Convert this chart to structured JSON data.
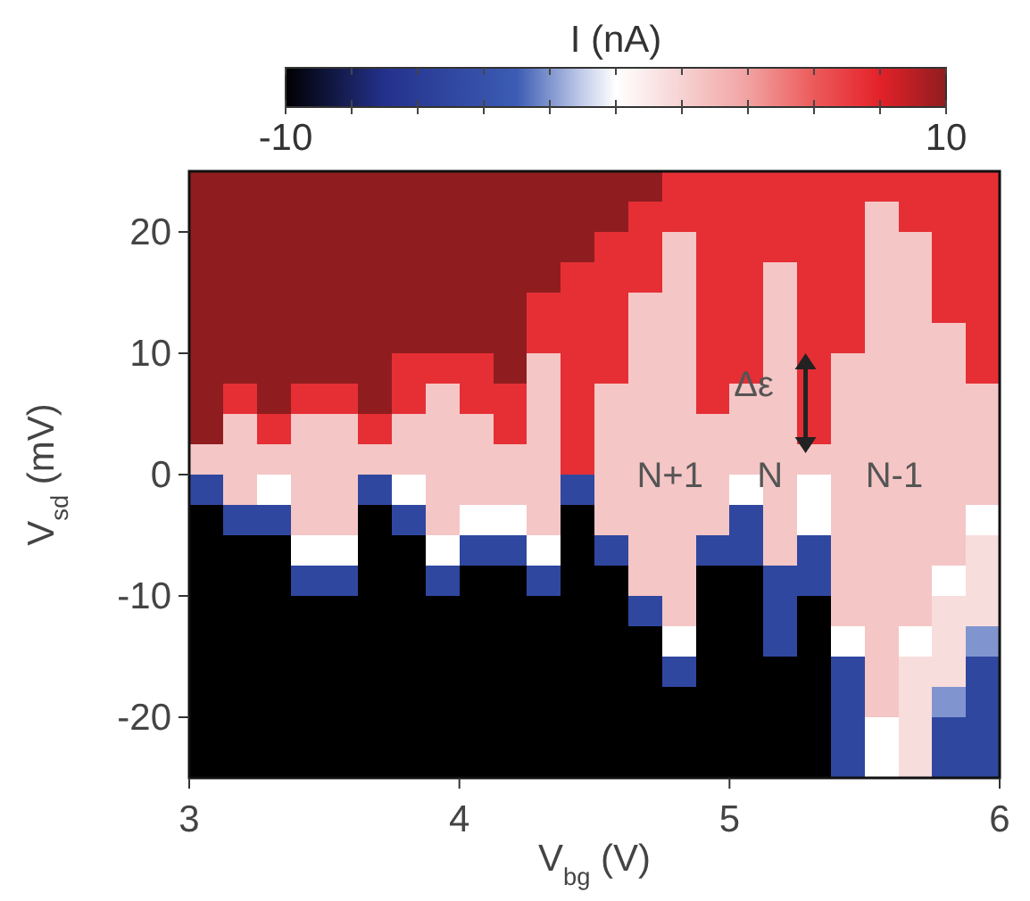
{
  "chart_data": {
    "type": "heatmap",
    "xlabel": "V$_{bg}$ (V)",
    "ylabel": "V$_{sd}$ (mV)",
    "clabel": "I (nA)",
    "xlim": [
      3,
      6
    ],
    "xticks": [
      3,
      4,
      5,
      6
    ],
    "ylim": [
      -25,
      25
    ],
    "yticks": [
      -20,
      -10,
      0,
      10,
      20
    ],
    "clim": [
      -10,
      10
    ],
    "cticks": [
      -10,
      {
        "value": -8,
        "label": null
      },
      {
        "value": -6,
        "label": null
      },
      {
        "value": -4,
        "label": null
      },
      {
        "value": -2,
        "label": null
      },
      {
        "value": 0,
        "label": null
      },
      {
        "value": 2,
        "label": null
      },
      {
        "value": 4,
        "label": null
      },
      {
        "value": 6,
        "label": null
      },
      {
        "value": 8,
        "label": null
      },
      10
    ],
    "cells": [
      [
        10,
        10,
        10,
        10,
        10,
        10,
        10,
        10,
        10,
        10,
        10,
        10,
        10,
        10,
        7.5,
        7.5,
        7.5,
        7.5,
        7.5,
        7.5,
        7.5,
        7.5,
        7.5,
        7.5
      ],
      [
        10,
        10,
        10,
        10,
        10,
        10,
        10,
        10,
        10,
        10,
        10,
        10,
        10,
        7.5,
        7.5,
        7.5,
        7.5,
        7.5,
        7.5,
        7.5,
        2.5,
        7.5,
        7.5,
        7.5
      ],
      [
        10,
        10,
        10,
        10,
        10,
        10,
        10,
        10,
        10,
        10,
        10,
        10,
        7.5,
        7.5,
        2.5,
        7.5,
        7.5,
        7.5,
        7.5,
        7.5,
        2.5,
        2.5,
        7.5,
        7.5
      ],
      [
        10,
        10,
        10,
        10,
        10,
        10,
        10,
        10,
        10,
        10,
        10,
        7.5,
        7.5,
        7.5,
        2.5,
        7.5,
        7.5,
        2.5,
        7.5,
        7.5,
        2.5,
        2.5,
        7.5,
        7.5
      ],
      [
        10,
        10,
        10,
        10,
        10,
        10,
        10,
        10,
        10,
        10,
        7.5,
        7.5,
        7.5,
        2.5,
        2.5,
        7.5,
        7.5,
        2.5,
        7.5,
        7.5,
        2.5,
        2.5,
        7.5,
        7.5
      ],
      [
        10,
        10,
        10,
        10,
        10,
        10,
        10,
        10,
        10,
        10,
        7.5,
        7.5,
        7.5,
        2.5,
        2.5,
        7.5,
        7.5,
        2.5,
        7.5,
        7.5,
        2.5,
        2.5,
        2.5,
        7.5
      ],
      [
        10,
        10,
        10,
        10,
        10,
        10,
        7.5,
        7.5,
        7.5,
        10,
        2.5,
        7.5,
        7.5,
        2.5,
        2.5,
        7.5,
        7.5,
        2.5,
        7.5,
        2.5,
        2.5,
        2.5,
        2.5,
        7.5
      ],
      [
        10,
        7.5,
        10,
        7.5,
        7.5,
        10,
        7.5,
        2.5,
        7.5,
        7.5,
        2.5,
        7.5,
        2.5,
        2.5,
        2.5,
        7.5,
        2.5,
        2.5,
        7.5,
        2.5,
        2.5,
        2.5,
        2.5,
        2.5
      ],
      [
        10,
        2.5,
        7.5,
        2.5,
        2.5,
        7.5,
        2.5,
        2.5,
        2.5,
        7.5,
        2.5,
        7.5,
        2.5,
        2.5,
        2.5,
        2.5,
        2.5,
        2.5,
        7.5,
        2.5,
        2.5,
        2.5,
        2.5,
        2.5
      ],
      [
        2.5,
        2.5,
        2.5,
        2.5,
        2.5,
        2.5,
        2.5,
        2.5,
        2.5,
        2.5,
        2.5,
        7.5,
        2.5,
        2.5,
        2.5,
        2.5,
        2.5,
        2.5,
        2.5,
        2.5,
        2.5,
        2.5,
        2.5,
        2.5
      ],
      [
        -5,
        2.5,
        0,
        2.5,
        2.5,
        -5,
        0,
        2.5,
        2.5,
        2.5,
        2.5,
        -5,
        2.5,
        2.5,
        2.5,
        2.5,
        0,
        2.5,
        0,
        2.5,
        2.5,
        2.5,
        2.5,
        2.5
      ],
      [
        -10,
        -5,
        -5,
        2.5,
        2.5,
        -10,
        -5,
        2.5,
        0,
        0,
        2.5,
        -10,
        2.5,
        2.5,
        2.5,
        2.5,
        -5,
        2.5,
        0,
        2.5,
        2.5,
        2.5,
        2.5,
        0
      ],
      [
        -10,
        -10,
        -10,
        0,
        0,
        -10,
        -10,
        0,
        -5,
        -5,
        0,
        -10,
        -5,
        2.5,
        2.5,
        -5,
        -5,
        2.5,
        -5,
        2.5,
        2.5,
        2.5,
        2.5,
        1.5
      ],
      [
        -10,
        -10,
        -10,
        -5,
        -5,
        -10,
        -10,
        -5,
        -10,
        -10,
        -5,
        -10,
        -10,
        2.5,
        2.5,
        -10,
        -10,
        -5,
        -5,
        2.5,
        2.5,
        2.5,
        0,
        1.5
      ],
      [
        -10,
        -10,
        -10,
        -10,
        -10,
        -10,
        -10,
        -10,
        -10,
        -10,
        -10,
        -10,
        -10,
        -5,
        2.5,
        -10,
        -10,
        -5,
        -10,
        2.5,
        2.5,
        2.5,
        1.5,
        1.5
      ],
      [
        -10,
        -10,
        -10,
        -10,
        -10,
        -10,
        -10,
        -10,
        -10,
        -10,
        -10,
        -10,
        -10,
        -10,
        0,
        -10,
        -10,
        -5,
        -10,
        0,
        2.5,
        0,
        1.5,
        -2
      ],
      [
        -10,
        -10,
        -10,
        -10,
        -10,
        -10,
        -10,
        -10,
        -10,
        -10,
        -10,
        -10,
        -10,
        -10,
        -5,
        -10,
        -10,
        -10,
        -10,
        -5,
        2.5,
        1.5,
        1.5,
        -5
      ],
      [
        -10,
        -10,
        -10,
        -10,
        -10,
        -10,
        -10,
        -10,
        -10,
        -10,
        -10,
        -10,
        -10,
        -10,
        -10,
        -10,
        -10,
        -10,
        -10,
        -5,
        2.5,
        1.5,
        -2,
        -5
      ],
      [
        -10,
        -10,
        -10,
        -10,
        -10,
        -10,
        -10,
        -10,
        -10,
        -10,
        -10,
        -10,
        -10,
        -10,
        -10,
        -10,
        -10,
        -10,
        -10,
        -5,
        0,
        1.5,
        -5,
        -5
      ],
      [
        -10,
        -10,
        -10,
        -10,
        -10,
        -10,
        -10,
        -10,
        -10,
        -10,
        -10,
        -10,
        -10,
        -10,
        -10,
        -10,
        -10,
        -10,
        -10,
        -5,
        0,
        1.5,
        -5,
        -5
      ]
    ],
    "annotations": [
      "N+1",
      "N",
      "N-1",
      "Δε"
    ]
  }
}
